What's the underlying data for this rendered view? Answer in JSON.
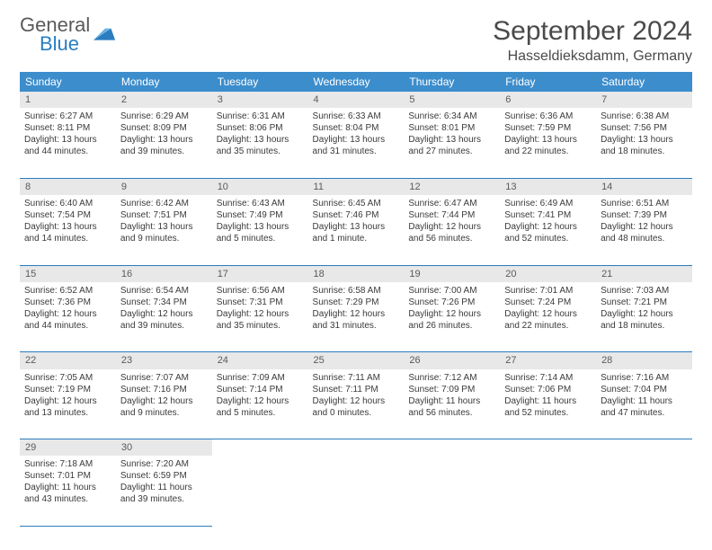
{
  "brand": {
    "word1": "General",
    "word2": "Blue",
    "color1": "#5a5a5a",
    "color2": "#2a7dc0"
  },
  "title": "September 2024",
  "location": "Hasseldieksdamm, Germany",
  "colors": {
    "header_bg": "#3c8dcc",
    "header_text": "#ffffff",
    "row_divider": "#2a7dc0",
    "daynum_bg": "#e8e8e8",
    "body_text": "#3a3a3a"
  },
  "layout": {
    "weeks": 5,
    "cols": 7
  },
  "weekdays": [
    "Sunday",
    "Monday",
    "Tuesday",
    "Wednesday",
    "Thursday",
    "Friday",
    "Saturday"
  ],
  "days": [
    {
      "n": "1",
      "sunrise": "6:27 AM",
      "sunset": "8:11 PM",
      "dl1": "13 hours",
      "dl2": "and 44 minutes."
    },
    {
      "n": "2",
      "sunrise": "6:29 AM",
      "sunset": "8:09 PM",
      "dl1": "13 hours",
      "dl2": "and 39 minutes."
    },
    {
      "n": "3",
      "sunrise": "6:31 AM",
      "sunset": "8:06 PM",
      "dl1": "13 hours",
      "dl2": "and 35 minutes."
    },
    {
      "n": "4",
      "sunrise": "6:33 AM",
      "sunset": "8:04 PM",
      "dl1": "13 hours",
      "dl2": "and 31 minutes."
    },
    {
      "n": "5",
      "sunrise": "6:34 AM",
      "sunset": "8:01 PM",
      "dl1": "13 hours",
      "dl2": "and 27 minutes."
    },
    {
      "n": "6",
      "sunrise": "6:36 AM",
      "sunset": "7:59 PM",
      "dl1": "13 hours",
      "dl2": "and 22 minutes."
    },
    {
      "n": "7",
      "sunrise": "6:38 AM",
      "sunset": "7:56 PM",
      "dl1": "13 hours",
      "dl2": "and 18 minutes."
    },
    {
      "n": "8",
      "sunrise": "6:40 AM",
      "sunset": "7:54 PM",
      "dl1": "13 hours",
      "dl2": "and 14 minutes."
    },
    {
      "n": "9",
      "sunrise": "6:42 AM",
      "sunset": "7:51 PM",
      "dl1": "13 hours",
      "dl2": "and 9 minutes."
    },
    {
      "n": "10",
      "sunrise": "6:43 AM",
      "sunset": "7:49 PM",
      "dl1": "13 hours",
      "dl2": "and 5 minutes."
    },
    {
      "n": "11",
      "sunrise": "6:45 AM",
      "sunset": "7:46 PM",
      "dl1": "13 hours",
      "dl2": "and 1 minute."
    },
    {
      "n": "12",
      "sunrise": "6:47 AM",
      "sunset": "7:44 PM",
      "dl1": "12 hours",
      "dl2": "and 56 minutes."
    },
    {
      "n": "13",
      "sunrise": "6:49 AM",
      "sunset": "7:41 PM",
      "dl1": "12 hours",
      "dl2": "and 52 minutes."
    },
    {
      "n": "14",
      "sunrise": "6:51 AM",
      "sunset": "7:39 PM",
      "dl1": "12 hours",
      "dl2": "and 48 minutes."
    },
    {
      "n": "15",
      "sunrise": "6:52 AM",
      "sunset": "7:36 PM",
      "dl1": "12 hours",
      "dl2": "and 44 minutes."
    },
    {
      "n": "16",
      "sunrise": "6:54 AM",
      "sunset": "7:34 PM",
      "dl1": "12 hours",
      "dl2": "and 39 minutes."
    },
    {
      "n": "17",
      "sunrise": "6:56 AM",
      "sunset": "7:31 PM",
      "dl1": "12 hours",
      "dl2": "and 35 minutes."
    },
    {
      "n": "18",
      "sunrise": "6:58 AM",
      "sunset": "7:29 PM",
      "dl1": "12 hours",
      "dl2": "and 31 minutes."
    },
    {
      "n": "19",
      "sunrise": "7:00 AM",
      "sunset": "7:26 PM",
      "dl1": "12 hours",
      "dl2": "and 26 minutes."
    },
    {
      "n": "20",
      "sunrise": "7:01 AM",
      "sunset": "7:24 PM",
      "dl1": "12 hours",
      "dl2": "and 22 minutes."
    },
    {
      "n": "21",
      "sunrise": "7:03 AM",
      "sunset": "7:21 PM",
      "dl1": "12 hours",
      "dl2": "and 18 minutes."
    },
    {
      "n": "22",
      "sunrise": "7:05 AM",
      "sunset": "7:19 PM",
      "dl1": "12 hours",
      "dl2": "and 13 minutes."
    },
    {
      "n": "23",
      "sunrise": "7:07 AM",
      "sunset": "7:16 PM",
      "dl1": "12 hours",
      "dl2": "and 9 minutes."
    },
    {
      "n": "24",
      "sunrise": "7:09 AM",
      "sunset": "7:14 PM",
      "dl1": "12 hours",
      "dl2": "and 5 minutes."
    },
    {
      "n": "25",
      "sunrise": "7:11 AM",
      "sunset": "7:11 PM",
      "dl1": "12 hours",
      "dl2": "and 0 minutes."
    },
    {
      "n": "26",
      "sunrise": "7:12 AM",
      "sunset": "7:09 PM",
      "dl1": "11 hours",
      "dl2": "and 56 minutes."
    },
    {
      "n": "27",
      "sunrise": "7:14 AM",
      "sunset": "7:06 PM",
      "dl1": "11 hours",
      "dl2": "and 52 minutes."
    },
    {
      "n": "28",
      "sunrise": "7:16 AM",
      "sunset": "7:04 PM",
      "dl1": "11 hours",
      "dl2": "and 47 minutes."
    },
    {
      "n": "29",
      "sunrise": "7:18 AM",
      "sunset": "7:01 PM",
      "dl1": "11 hours",
      "dl2": "and 43 minutes."
    },
    {
      "n": "30",
      "sunrise": "7:20 AM",
      "sunset": "6:59 PM",
      "dl1": "11 hours",
      "dl2": "and 39 minutes."
    }
  ],
  "labels": {
    "sunrise": "Sunrise:",
    "sunset": "Sunset:",
    "daylight": "Daylight:"
  }
}
